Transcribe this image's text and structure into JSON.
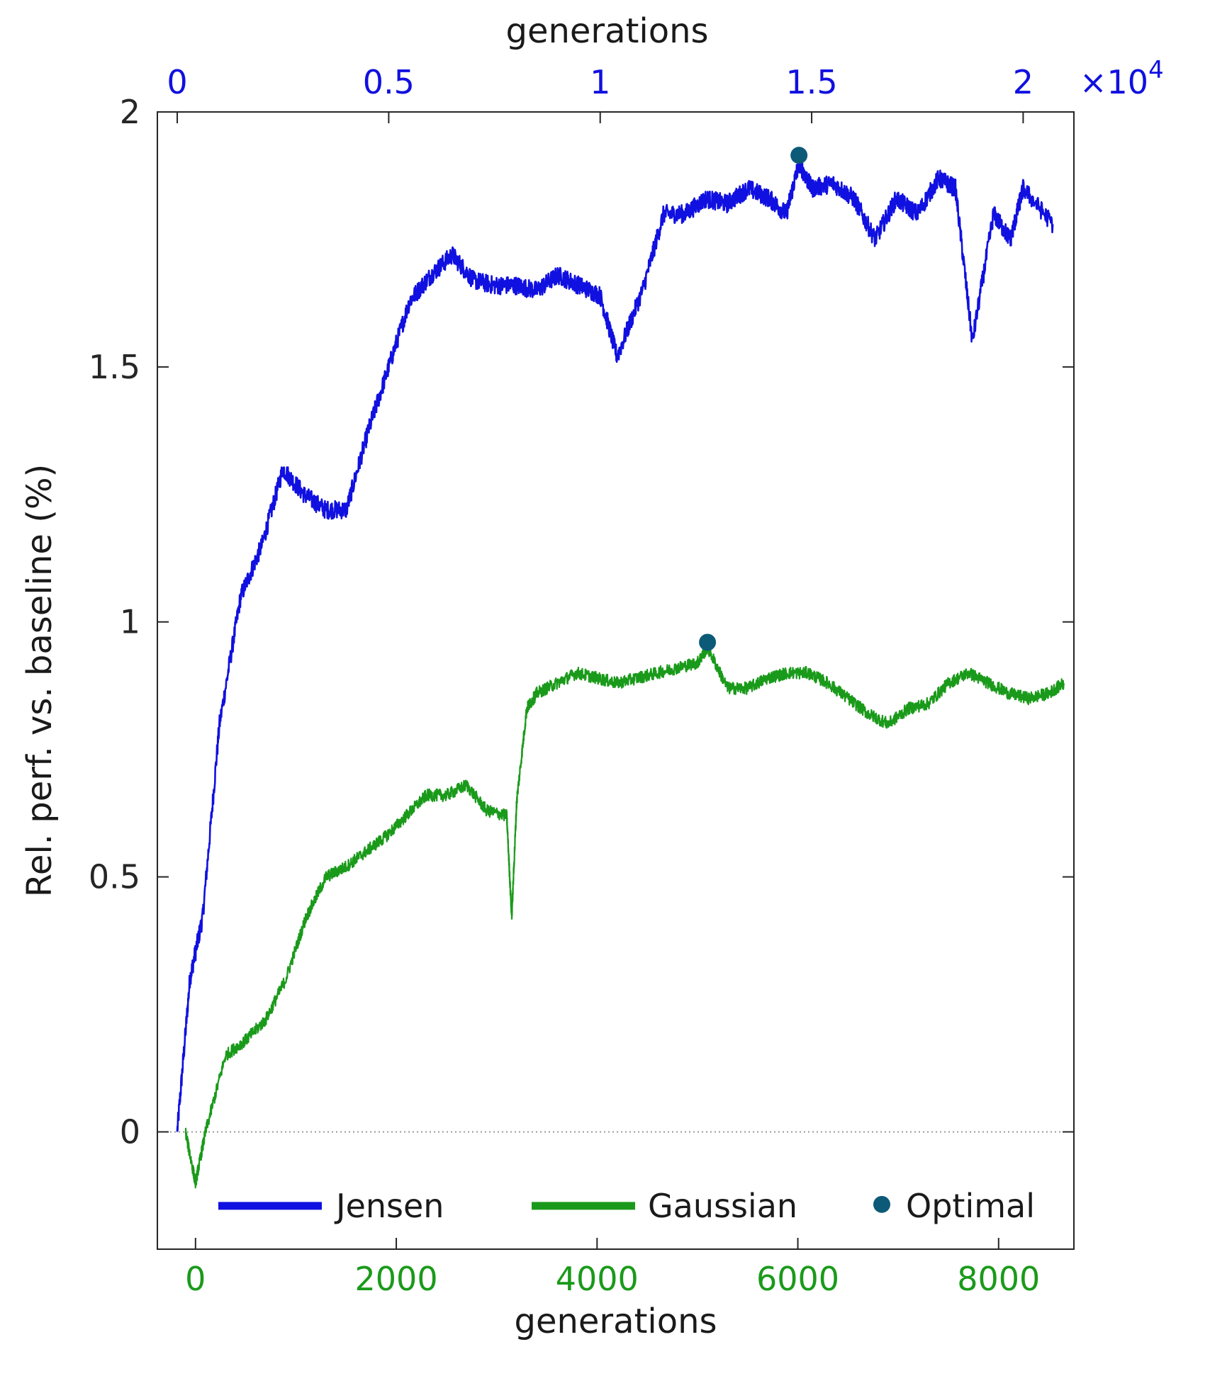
{
  "chart_data": {
    "type": "line",
    "ylabel": "Rel. perf. vs. baseline (%)",
    "ylim": [
      -0.23,
      2.0
    ],
    "yticks": [
      0,
      0.5,
      1,
      1.5,
      2
    ],
    "ytick_labels": [
      "0",
      "0.5",
      "1",
      "1.5",
      "2"
    ],
    "baseline_y": 0,
    "x_bottom": {
      "label": "generations",
      "lim": [
        -380,
        8750
      ],
      "ticks": [
        0,
        2000,
        4000,
        6000,
        8000
      ],
      "tick_labels": [
        "0",
        "2000",
        "4000",
        "6000",
        "8000"
      ],
      "color": "#1a9a1a"
    },
    "x_top": {
      "label": "generations",
      "lim": [
        -470,
        21200
      ],
      "ticks": [
        0,
        5000,
        10000,
        15000,
        20000
      ],
      "tick_labels": [
        "0",
        "0.5",
        "1",
        "1.5",
        "2"
      ],
      "multiplier_base": "×10",
      "multiplier_exp": "4",
      "color": "#1010e0"
    },
    "series": [
      {
        "name": "Jensen",
        "axis": "top",
        "color": "#1010e0",
        "x": [
          0,
          300,
          600,
          1000,
          1500,
          2000,
          2500,
          3000,
          3500,
          4000,
          4500,
          5000,
          5500,
          6000,
          6500,
          7000,
          7500,
          8000,
          8500,
          9000,
          9500,
          10000,
          10400,
          11000,
          11500,
          12000,
          12500,
          13000,
          13500,
          14000,
          14400,
          14700,
          15000,
          15500,
          16000,
          16500,
          17000,
          17500,
          18000,
          18400,
          18800,
          19300,
          19700,
          20000,
          20700
        ],
        "values": [
          0,
          0.3,
          0.42,
          0.8,
          1.05,
          1.15,
          1.3,
          1.25,
          1.22,
          1.22,
          1.37,
          1.5,
          1.63,
          1.68,
          1.72,
          1.67,
          1.66,
          1.66,
          1.65,
          1.68,
          1.66,
          1.64,
          1.52,
          1.65,
          1.8,
          1.8,
          1.83,
          1.82,
          1.85,
          1.83,
          1.8,
          1.9,
          1.85,
          1.86,
          1.83,
          1.75,
          1.83,
          1.8,
          1.87,
          1.85,
          1.55,
          1.8,
          1.75,
          1.85,
          1.78
        ]
      },
      {
        "name": "Gaussian",
        "axis": "bottom",
        "color": "#1a9a1a",
        "x": [
          -100,
          0,
          100,
          300,
          500,
          700,
          900,
          1100,
          1300,
          1500,
          1700,
          1900,
          2100,
          2300,
          2500,
          2700,
          2900,
          3100,
          3150,
          3200,
          3300,
          3400,
          3600,
          3800,
          4000,
          4200,
          4400,
          4600,
          4800,
          5000,
          5100,
          5300,
          5500,
          5700,
          5900,
          6100,
          6300,
          6500,
          6700,
          6900,
          7100,
          7300,
          7500,
          7700,
          7900,
          8100,
          8300,
          8500,
          8650
        ],
        "values": [
          0,
          -0.1,
          0.0,
          0.15,
          0.18,
          0.22,
          0.3,
          0.42,
          0.5,
          0.52,
          0.55,
          0.58,
          0.62,
          0.66,
          0.66,
          0.68,
          0.63,
          0.62,
          0.42,
          0.65,
          0.83,
          0.86,
          0.88,
          0.9,
          0.89,
          0.88,
          0.89,
          0.9,
          0.91,
          0.92,
          0.95,
          0.87,
          0.87,
          0.89,
          0.9,
          0.9,
          0.88,
          0.85,
          0.82,
          0.8,
          0.83,
          0.84,
          0.88,
          0.9,
          0.88,
          0.86,
          0.85,
          0.86,
          0.88
        ]
      },
      {
        "name": "Optimal",
        "type": "scatter",
        "color": "#0c5a78",
        "points": [
          {
            "axis": "top",
            "x": 14700,
            "y": 1.915
          },
          {
            "axis": "bottom",
            "x": 5100,
            "y": 0.96
          }
        ]
      }
    ],
    "legend": {
      "placement": "bottom-inside",
      "entries": [
        {
          "label": "Jensen",
          "color": "#1010e0",
          "kind": "line"
        },
        {
          "label": "Gaussian",
          "color": "#1a9a1a",
          "kind": "line"
        },
        {
          "label": "Optimal",
          "color": "#0c5a78",
          "kind": "marker"
        }
      ]
    },
    "grid": false
  }
}
